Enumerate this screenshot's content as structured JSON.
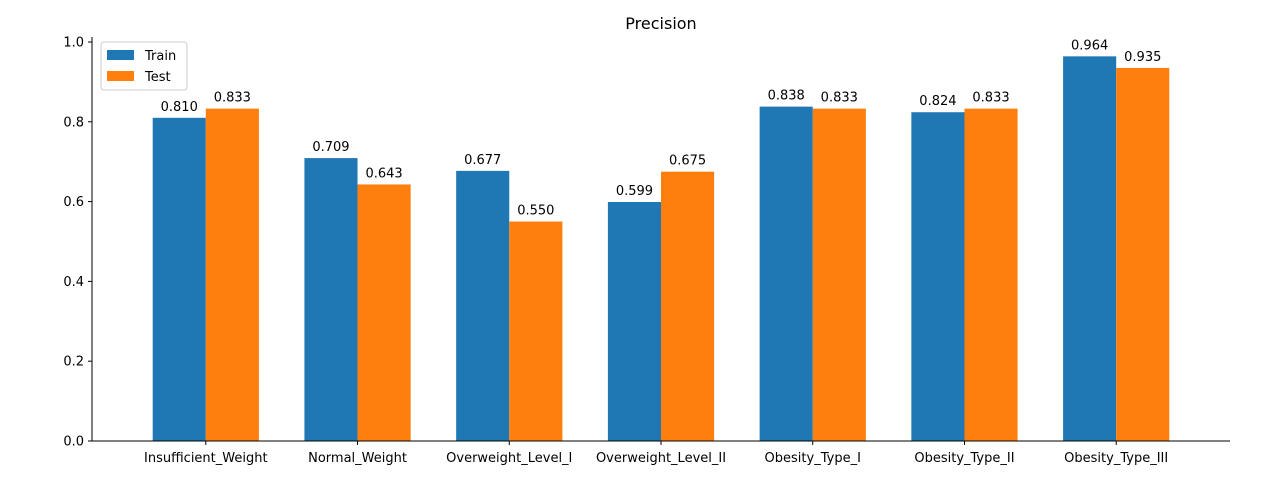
{
  "chart_data": {
    "type": "bar",
    "title": "Precision",
    "xlabel": "",
    "ylabel": "",
    "categories": [
      "Insufficient_Weight",
      "Normal_Weight",
      "Overweight_Level_I",
      "Overweight_Level_II",
      "Obesity_Type_I",
      "Obesity_Type_II",
      "Obesity_Type_III"
    ],
    "series": [
      {
        "name": "Train",
        "color": "#1f77b4",
        "values": [
          0.81,
          0.709,
          0.677,
          0.599,
          0.838,
          0.824,
          0.964
        ],
        "labels": [
          "0.810",
          "0.709",
          "0.677",
          "0.599",
          "0.838",
          "0.824",
          "0.964"
        ]
      },
      {
        "name": "Test",
        "color": "#ff7f0e",
        "values": [
          0.833,
          0.643,
          0.55,
          0.675,
          0.833,
          0.833,
          0.935
        ],
        "labels": [
          "0.833",
          "0.643",
          "0.550",
          "0.675",
          "0.833",
          "0.833",
          "0.935"
        ]
      }
    ],
    "ylim": [
      0,
      1.0
    ],
    "yticks": [
      0.0,
      0.2,
      0.4,
      0.6,
      0.8,
      1.0
    ],
    "ytick_labels": [
      "0.0",
      "0.2",
      "0.4",
      "0.6",
      "0.8",
      "1.0"
    ],
    "grid": false,
    "legend_position": "top-left"
  }
}
